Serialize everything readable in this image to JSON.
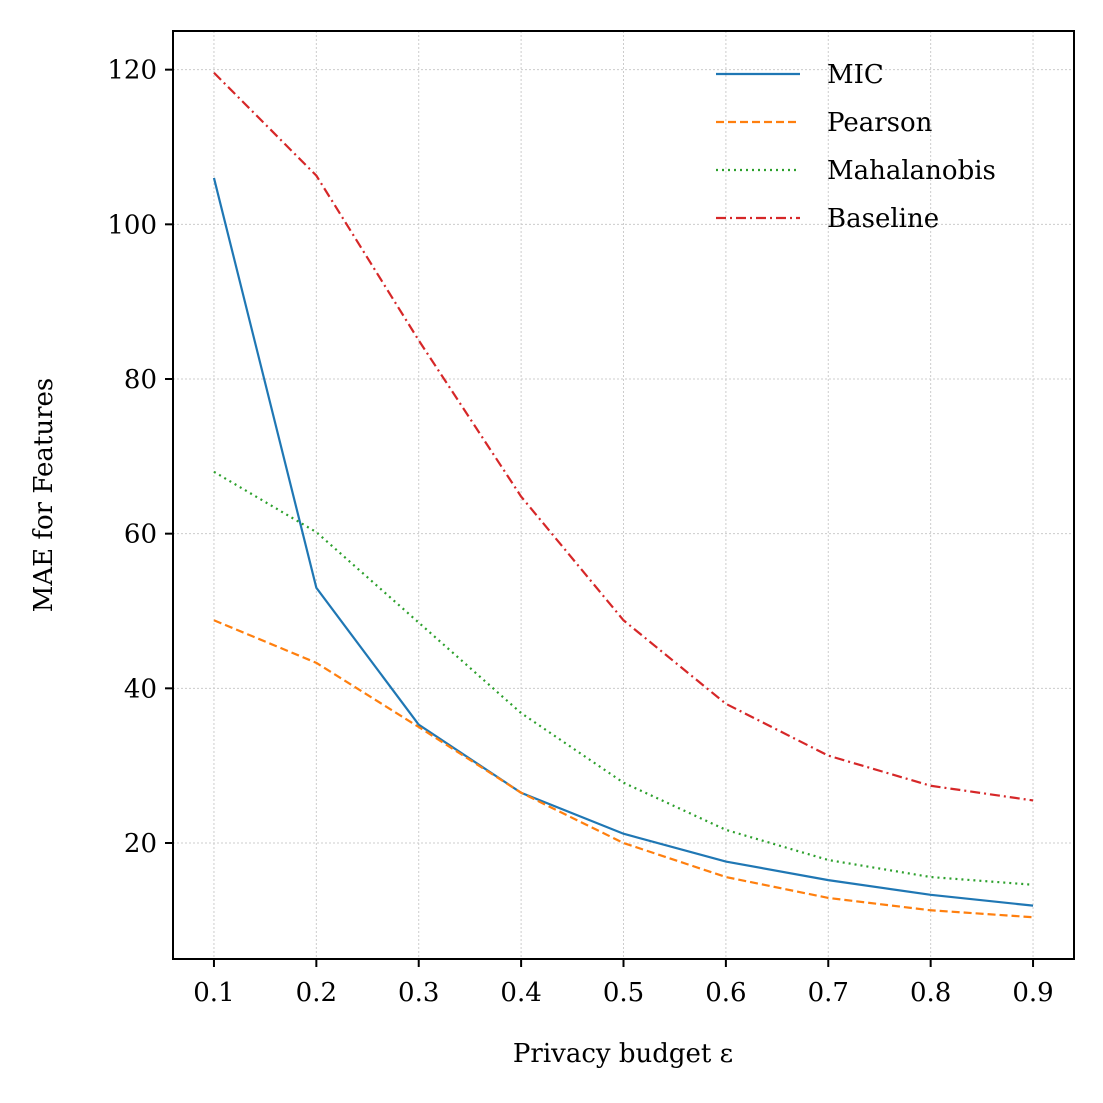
{
  "chart_data": {
    "type": "line",
    "title": "",
    "xlabel": "Privacy budget ε",
    "ylabel": "MAE for Features",
    "x": [
      0.1,
      0.2,
      0.3,
      0.4,
      0.5,
      0.6,
      0.7,
      0.8,
      0.9
    ],
    "xticks": [
      "0.1",
      "0.2",
      "0.3",
      "0.4",
      "0.5",
      "0.6",
      "0.7",
      "0.8",
      "0.9"
    ],
    "yticks": [
      "20",
      "40",
      "60",
      "80",
      "100",
      "120"
    ],
    "xlim": [
      0.06,
      0.94
    ],
    "ylim": [
      5,
      125
    ],
    "grid": true,
    "legend_position": "top-right",
    "series": [
      {
        "name": "MIC",
        "color": "#1f77b4",
        "dash": "solid",
        "values": [
          106,
          53,
          35.3,
          26.5,
          21.2,
          17.6,
          15.2,
          13.3,
          11.9
        ]
      },
      {
        "name": "Pearson",
        "color": "#ff7f0e",
        "dash": "dashed",
        "values": [
          48.8,
          43.3,
          35.0,
          26.5,
          20.0,
          15.6,
          12.9,
          11.3,
          10.4
        ]
      },
      {
        "name": "Mahalanobis",
        "color": "#2ca02c",
        "dash": "dotted",
        "values": [
          68.0,
          60.2,
          48.5,
          36.8,
          27.8,
          21.7,
          17.8,
          15.6,
          14.6
        ]
      },
      {
        "name": "Baseline",
        "color": "#d62728",
        "dash": "dashdot",
        "values": [
          119.6,
          106.3,
          85.0,
          64.8,
          48.8,
          38.0,
          31.3,
          27.4,
          25.5
        ]
      }
    ]
  }
}
